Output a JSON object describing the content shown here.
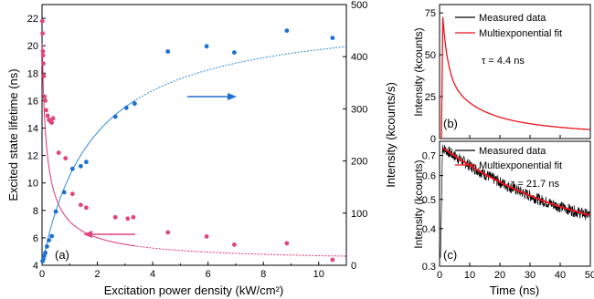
{
  "colors": {
    "red": "#e0457b",
    "blue": "#1f6fd1",
    "fit_red": "#e8307a",
    "fit_blue": "#2e8be0",
    "panel_red": "#e8141e",
    "panel_black": "#000000"
  },
  "chart_data": [
    {
      "panel": "(a)",
      "type": "scatter",
      "xlabel": "Excitation power density (kW/cm²)",
      "ylabel_left": "Excited state lifetime (ns)",
      "ylabel_right": "Intensity (kcounts/s)",
      "xlim": [
        0,
        11
      ],
      "ylim_left": [
        4,
        23
      ],
      "ylim_right": [
        0,
        500
      ],
      "x_ticks": [
        "0",
        "2",
        "4",
        "6",
        "8",
        "10"
      ],
      "y_ticks_left": [
        "4",
        "6",
        "8",
        "10",
        "12",
        "14",
        "16",
        "18",
        "20",
        "22"
      ],
      "y_ticks_right": [
        "0",
        "100",
        "200",
        "300",
        "400",
        "500"
      ],
      "series": [
        {
          "axis": "left",
          "color": "#e0457b",
          "x": [
            0.01,
            0.02,
            0.03,
            0.04,
            0.05,
            0.07,
            0.09,
            0.12,
            0.15,
            0.2,
            0.25,
            0.3,
            0.35,
            0.4,
            0.6,
            0.85,
            1.1,
            1.4,
            1.6,
            2.65,
            3.1,
            3.3,
            4.55,
            5.95,
            6.95,
            8.85,
            10.5
          ],
          "y": [
            21.8,
            20.9,
            19.6,
            19.3,
            18.7,
            17.8,
            16.3,
            16.0,
            15.3,
            14.9,
            14.6,
            14.5,
            14.4,
            14.7,
            12.2,
            11.8,
            9.2,
            8.4,
            8.2,
            7.5,
            7.4,
            7.5,
            6.4,
            6.1,
            5.5,
            5.6,
            4.4
          ]
        },
        {
          "axis": "right",
          "color": "#1f6fd1",
          "x": [
            0.02,
            0.05,
            0.08,
            0.12,
            0.18,
            0.25,
            0.35,
            0.5,
            0.8,
            1.1,
            1.4,
            1.6,
            2.65,
            3.05,
            3.35,
            4.55,
            5.95,
            6.95,
            8.85,
            10.5
          ],
          "y": [
            8,
            12,
            18,
            24,
            36,
            48,
            56,
            103,
            140,
            185,
            190,
            198,
            285,
            302,
            310,
            410,
            420,
            408,
            450,
            436
          ]
        }
      ],
      "annotation": "(a)"
    },
    {
      "panel": "(b)",
      "type": "line",
      "xlim": [
        0,
        50
      ],
      "ylabel": "Intensity (kcounts)",
      "y_ticks": [
        "0",
        "25",
        "50",
        "75"
      ],
      "ylim": [
        0,
        80
      ],
      "legend": [
        "Measured data",
        "Multiexponential fit"
      ],
      "tau": "τ = 4.4 ns",
      "annotation": "(b)"
    },
    {
      "panel": "(c)",
      "type": "line",
      "xlabel": "Time (ns)",
      "ylabel": "Intensity (kcounts)",
      "xlim": [
        0,
        50
      ],
      "ylim": [
        0.3,
        0.78
      ],
      "y_scale": "log",
      "x_ticks": [
        "0",
        "10",
        "20",
        "30",
        "40",
        "50"
      ],
      "y_ticks": [
        "0.3",
        "0.4",
        "0.5",
        "0.6",
        "0.7"
      ],
      "legend": [
        "Measured data",
        "Multiexponential fit"
      ],
      "tau": "τ = 21.7 ns",
      "annotation": "(c)"
    }
  ]
}
